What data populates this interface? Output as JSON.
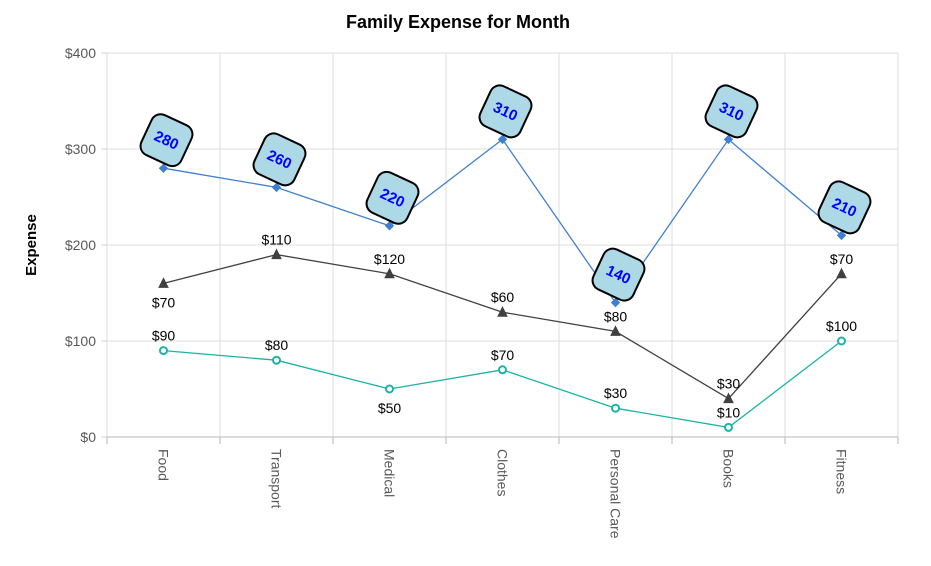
{
  "chart_data": {
    "type": "line",
    "title": "Family Expense for Month",
    "xlabel": "",
    "ylabel": "Expense",
    "categories": [
      "Food",
      "Transport",
      "Medical",
      "Clothes",
      "Personal Care",
      "Books",
      "Fitness"
    ],
    "yticks": [
      "$0",
      "$100",
      "$200",
      "$300",
      "$400"
    ],
    "ylim": [
      0,
      400
    ],
    "grid": true,
    "series": [
      {
        "values": [
          280,
          260,
          220,
          310,
          140,
          310,
          210
        ],
        "labels": [
          "280",
          "260",
          "220",
          "310",
          "140",
          "310",
          "210"
        ],
        "color": "#3f7fcf",
        "marker": "diamond",
        "label_style": "callout",
        "callout_fill": "#add8e6",
        "callout_text_color": "#0000ff"
      },
      {
        "values": [
          160,
          190,
          170,
          130,
          110,
          40,
          170
        ],
        "labels": [
          "$70",
          "$110",
          "$120",
          "$60",
          "$80",
          "$30",
          "$70"
        ],
        "color": "#404040",
        "marker": "triangle",
        "label_position": [
          "below",
          "above",
          "above",
          "above",
          "above",
          "above",
          "above"
        ]
      },
      {
        "values": [
          90,
          80,
          50,
          70,
          30,
          10,
          100
        ],
        "labels": [
          "$90",
          "$80",
          "$50",
          "$70",
          "$30",
          "$10",
          "$100"
        ],
        "color": "#1ab3a6",
        "marker": "circle",
        "label_position": [
          "above",
          "above",
          "below",
          "above",
          "above",
          "above",
          "above"
        ]
      }
    ]
  }
}
